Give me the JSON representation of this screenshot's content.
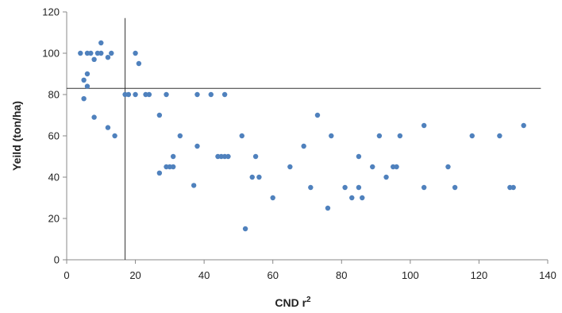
{
  "chart_data": {
    "type": "scatter",
    "title": "",
    "xlabel": "CND r",
    "xlabel_superscript": "2",
    "ylabel": "Yeild (ton/ha)",
    "xlim": [
      0,
      140
    ],
    "ylim": [
      0,
      120
    ],
    "xticks": [
      0,
      20,
      40,
      60,
      80,
      100,
      120,
      140
    ],
    "yticks": [
      0,
      20,
      40,
      60,
      80,
      100,
      120
    ],
    "grid": false,
    "legend": "none",
    "marker_color": "#4f81bd",
    "reference_lines": [
      {
        "orientation": "vertical",
        "x": 17,
        "y_range": [
          0,
          117
        ]
      },
      {
        "orientation": "horizontal",
        "y": 83,
        "x_range": [
          0,
          138
        ]
      }
    ],
    "points": [
      {
        "x": 4,
        "y": 100
      },
      {
        "x": 5,
        "y": 87
      },
      {
        "x": 5,
        "y": 78
      },
      {
        "x": 6,
        "y": 100
      },
      {
        "x": 6,
        "y": 84
      },
      {
        "x": 6,
        "y": 90
      },
      {
        "x": 7,
        "y": 100
      },
      {
        "x": 8,
        "y": 97
      },
      {
        "x": 8,
        "y": 69
      },
      {
        "x": 9,
        "y": 100
      },
      {
        "x": 10,
        "y": 100
      },
      {
        "x": 10,
        "y": 105
      },
      {
        "x": 12,
        "y": 98
      },
      {
        "x": 12,
        "y": 64
      },
      {
        "x": 13,
        "y": 100
      },
      {
        "x": 14,
        "y": 60
      },
      {
        "x": 17,
        "y": 80
      },
      {
        "x": 18,
        "y": 80
      },
      {
        "x": 20,
        "y": 100
      },
      {
        "x": 20,
        "y": 80
      },
      {
        "x": 21,
        "y": 95
      },
      {
        "x": 23,
        "y": 80
      },
      {
        "x": 24,
        "y": 80
      },
      {
        "x": 27,
        "y": 70
      },
      {
        "x": 27,
        "y": 42
      },
      {
        "x": 29,
        "y": 80
      },
      {
        "x": 29,
        "y": 45
      },
      {
        "x": 30,
        "y": 45
      },
      {
        "x": 31,
        "y": 50
      },
      {
        "x": 31,
        "y": 45
      },
      {
        "x": 33,
        "y": 60
      },
      {
        "x": 37,
        "y": 36
      },
      {
        "x": 38,
        "y": 80
      },
      {
        "x": 38,
        "y": 55
      },
      {
        "x": 42,
        "y": 80
      },
      {
        "x": 44,
        "y": 50
      },
      {
        "x": 45,
        "y": 50
      },
      {
        "x": 46,
        "y": 80
      },
      {
        "x": 46,
        "y": 50
      },
      {
        "x": 47,
        "y": 50
      },
      {
        "x": 51,
        "y": 60
      },
      {
        "x": 52,
        "y": 15
      },
      {
        "x": 54,
        "y": 40
      },
      {
        "x": 55,
        "y": 50
      },
      {
        "x": 56,
        "y": 40
      },
      {
        "x": 60,
        "y": 30
      },
      {
        "x": 65,
        "y": 45
      },
      {
        "x": 69,
        "y": 55
      },
      {
        "x": 71,
        "y": 35
      },
      {
        "x": 73,
        "y": 70
      },
      {
        "x": 76,
        "y": 25
      },
      {
        "x": 77,
        "y": 60
      },
      {
        "x": 81,
        "y": 35
      },
      {
        "x": 83,
        "y": 30
      },
      {
        "x": 85,
        "y": 35
      },
      {
        "x": 85,
        "y": 50
      },
      {
        "x": 86,
        "y": 30
      },
      {
        "x": 89,
        "y": 45
      },
      {
        "x": 91,
        "y": 60
      },
      {
        "x": 93,
        "y": 40
      },
      {
        "x": 95,
        "y": 45
      },
      {
        "x": 96,
        "y": 45
      },
      {
        "x": 97,
        "y": 60
      },
      {
        "x": 104,
        "y": 65
      },
      {
        "x": 104,
        "y": 35
      },
      {
        "x": 111,
        "y": 45
      },
      {
        "x": 113,
        "y": 35
      },
      {
        "x": 118,
        "y": 60
      },
      {
        "x": 126,
        "y": 60
      },
      {
        "x": 129,
        "y": 35
      },
      {
        "x": 130,
        "y": 35
      },
      {
        "x": 133,
        "y": 65
      }
    ]
  }
}
